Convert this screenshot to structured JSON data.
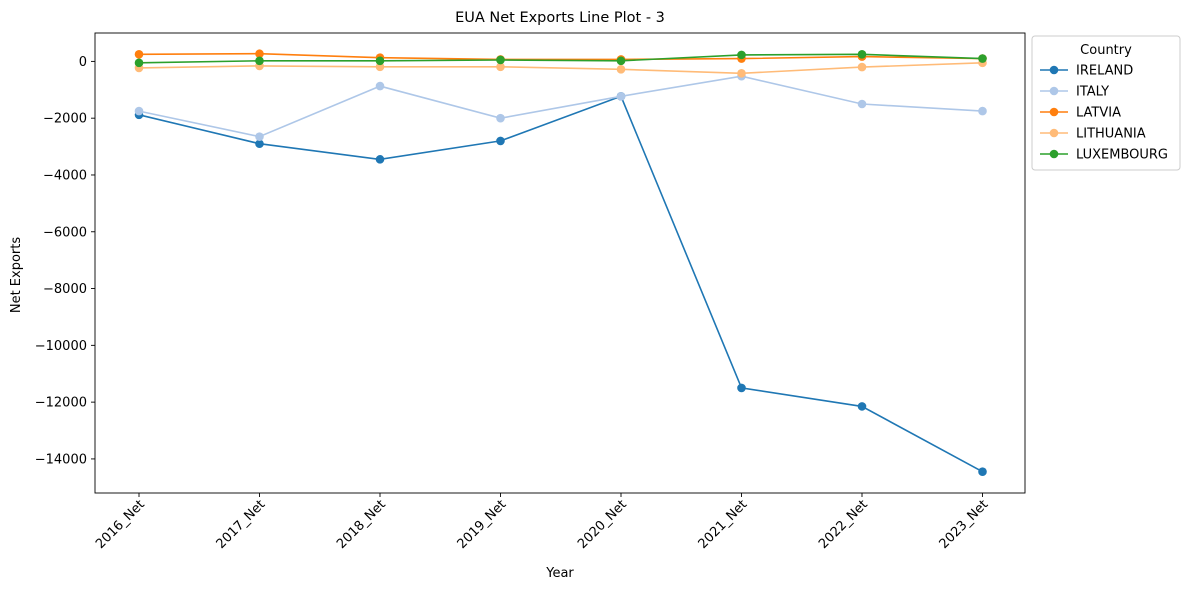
{
  "chart_data": {
    "type": "line",
    "title": "EUA Net Exports Line Plot - 3",
    "xlabel": "Year",
    "ylabel": "Net Exports",
    "categories": [
      "2016_Net",
      "2017_Net",
      "2018_Net",
      "2019_Net",
      "2020_Net",
      "2021_Net",
      "2022_Net",
      "2023_Net"
    ],
    "ylim": [
      -15200,
      1000
    ],
    "yticks": [
      0,
      -2000,
      -4000,
      -6000,
      -8000,
      -10000,
      -12000,
      -14000
    ],
    "ytick_labels": [
      "0",
      "−2000",
      "−4000",
      "−6000",
      "−8000",
      "−10000",
      "−12000",
      "−14000"
    ],
    "grid": false,
    "legend": {
      "title": "Country",
      "placement": "outside top-right"
    },
    "series": [
      {
        "name": "IRELAND",
        "color": "#1f77b4",
        "values": [
          -1880,
          -2900,
          -3450,
          -2800,
          -1230,
          -11500,
          -12150,
          -14450
        ]
      },
      {
        "name": "ITALY",
        "color": "#aec7e8",
        "values": [
          -1750,
          -2650,
          -870,
          -2000,
          -1230,
          -520,
          -1500,
          -1750
        ]
      },
      {
        "name": "LATVIA",
        "color": "#ff7f0e",
        "values": [
          250,
          270,
          130,
          70,
          70,
          100,
          170,
          100
        ]
      },
      {
        "name": "LITHUANIA",
        "color": "#ffbb78",
        "values": [
          -230,
          -160,
          -190,
          -190,
          -280,
          -420,
          -200,
          -50
        ]
      },
      {
        "name": "LUXEMBOURG",
        "color": "#2ca02c",
        "values": [
          -50,
          20,
          20,
          50,
          20,
          230,
          250,
          100
        ]
      }
    ]
  }
}
